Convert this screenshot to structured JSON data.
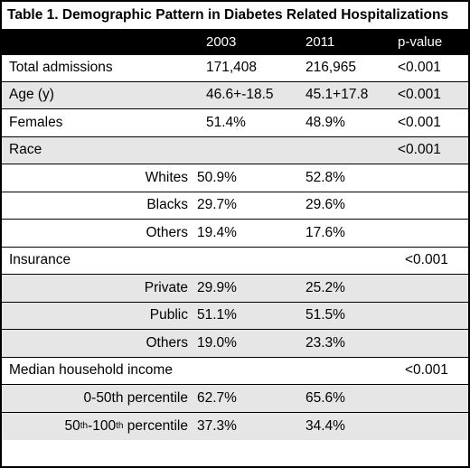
{
  "title": "Table 1. Demographic Pattern in Diabetes Related Hospitalizations",
  "header": {
    "col1": "",
    "col2003": "2003",
    "col2011": "2011",
    "colp": "p-value"
  },
  "rows": {
    "total_admissions": {
      "label": "Total admissions",
      "v2003": "171,408",
      "v2011": "216,965",
      "p": "<0.001"
    },
    "age": {
      "label": "Age (y)",
      "v2003": "46.6+-18.5",
      "v2011": "45.1+17.8",
      "p": "<0.001"
    },
    "females": {
      "label": "Females",
      "v2003": "51.4%",
      "v2011": "48.9%",
      "p": "<0.001"
    },
    "race": {
      "label": "Race",
      "p": "<0.001"
    },
    "whites": {
      "label": "Whites",
      "v2003": "50.9%",
      "v2011": "52.8%"
    },
    "blacks": {
      "label": "Blacks",
      "v2003": "29.7%",
      "v2011": "29.6%"
    },
    "race_others": {
      "label": "Others",
      "v2003": "19.4%",
      "v2011": "17.6%"
    },
    "insurance": {
      "label": "Insurance",
      "p": "<0.001"
    },
    "private": {
      "label": "Private",
      "v2003": "29.9%",
      "v2011": "25.2%"
    },
    "public": {
      "label": "Public",
      "v2003": "51.1%",
      "v2011": "51.5%"
    },
    "ins_others": {
      "label": "Others",
      "v2003": "19.0%",
      "v2011": "23.3%"
    },
    "income": {
      "label": "Median household income",
      "p": "<0.001"
    },
    "pct_0_50": {
      "label": "0-50th percentile",
      "v2003": "62.7%",
      "v2011": "65.6%"
    },
    "pct_50_100": {
      "label_pre": "50",
      "label_sup1": "th",
      "label_mid": "-100",
      "label_sup2": "th",
      "label_post": " percentile",
      "v2003": "37.3%",
      "v2011": "34.4%"
    }
  },
  "colors": {
    "header_bg": "#000000",
    "shade": "#e6e6e6",
    "white": "#ffffff"
  }
}
